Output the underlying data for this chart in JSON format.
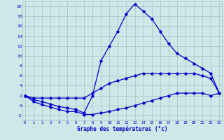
{
  "xlabel": "Graphe des températures (°c)",
  "background_color": "#cce8e8",
  "grid_color": "#aacece",
  "line_color": "#0000cc",
  "x": [
    0,
    1,
    2,
    3,
    4,
    5,
    6,
    7,
    8,
    9,
    10,
    11,
    12,
    13,
    14,
    15,
    16,
    17,
    18,
    19,
    20,
    21,
    22,
    23
  ],
  "line_max": [
    2.0,
    1.2,
    0.8,
    0.3,
    -0.2,
    -0.5,
    -0.8,
    -1.5,
    2.0,
    9.0,
    12.0,
    15.0,
    18.5,
    20.5,
    19.0,
    17.5,
    15.0,
    12.5,
    10.5,
    9.5,
    8.5,
    7.5,
    6.5,
    2.5
  ],
  "line_mean": [
    2.0,
    1.5,
    1.5,
    1.5,
    1.5,
    1.5,
    1.5,
    1.5,
    2.5,
    3.5,
    4.5,
    5.0,
    5.5,
    6.0,
    6.5,
    6.5,
    6.5,
    6.5,
    6.5,
    6.5,
    6.5,
    6.0,
    5.5,
    2.5
  ],
  "line_min": [
    2.0,
    0.8,
    0.2,
    -0.3,
    -0.8,
    -1.2,
    -1.2,
    -1.8,
    -1.8,
    -1.5,
    -1.2,
    -0.8,
    -0.5,
    0.0,
    0.5,
    1.0,
    1.5,
    2.0,
    2.5,
    2.5,
    2.5,
    2.5,
    2.0,
    2.5
  ],
  "ylim": [
    -3,
    21
  ],
  "yticks": [
    -2,
    0,
    2,
    4,
    6,
    8,
    10,
    12,
    14,
    16,
    18,
    20
  ],
  "xlim": [
    -0.3,
    23.3
  ],
  "xticks": [
    0,
    1,
    2,
    3,
    4,
    5,
    6,
    7,
    8,
    9,
    10,
    11,
    12,
    13,
    14,
    15,
    16,
    17,
    18,
    19,
    20,
    21,
    22,
    23
  ]
}
